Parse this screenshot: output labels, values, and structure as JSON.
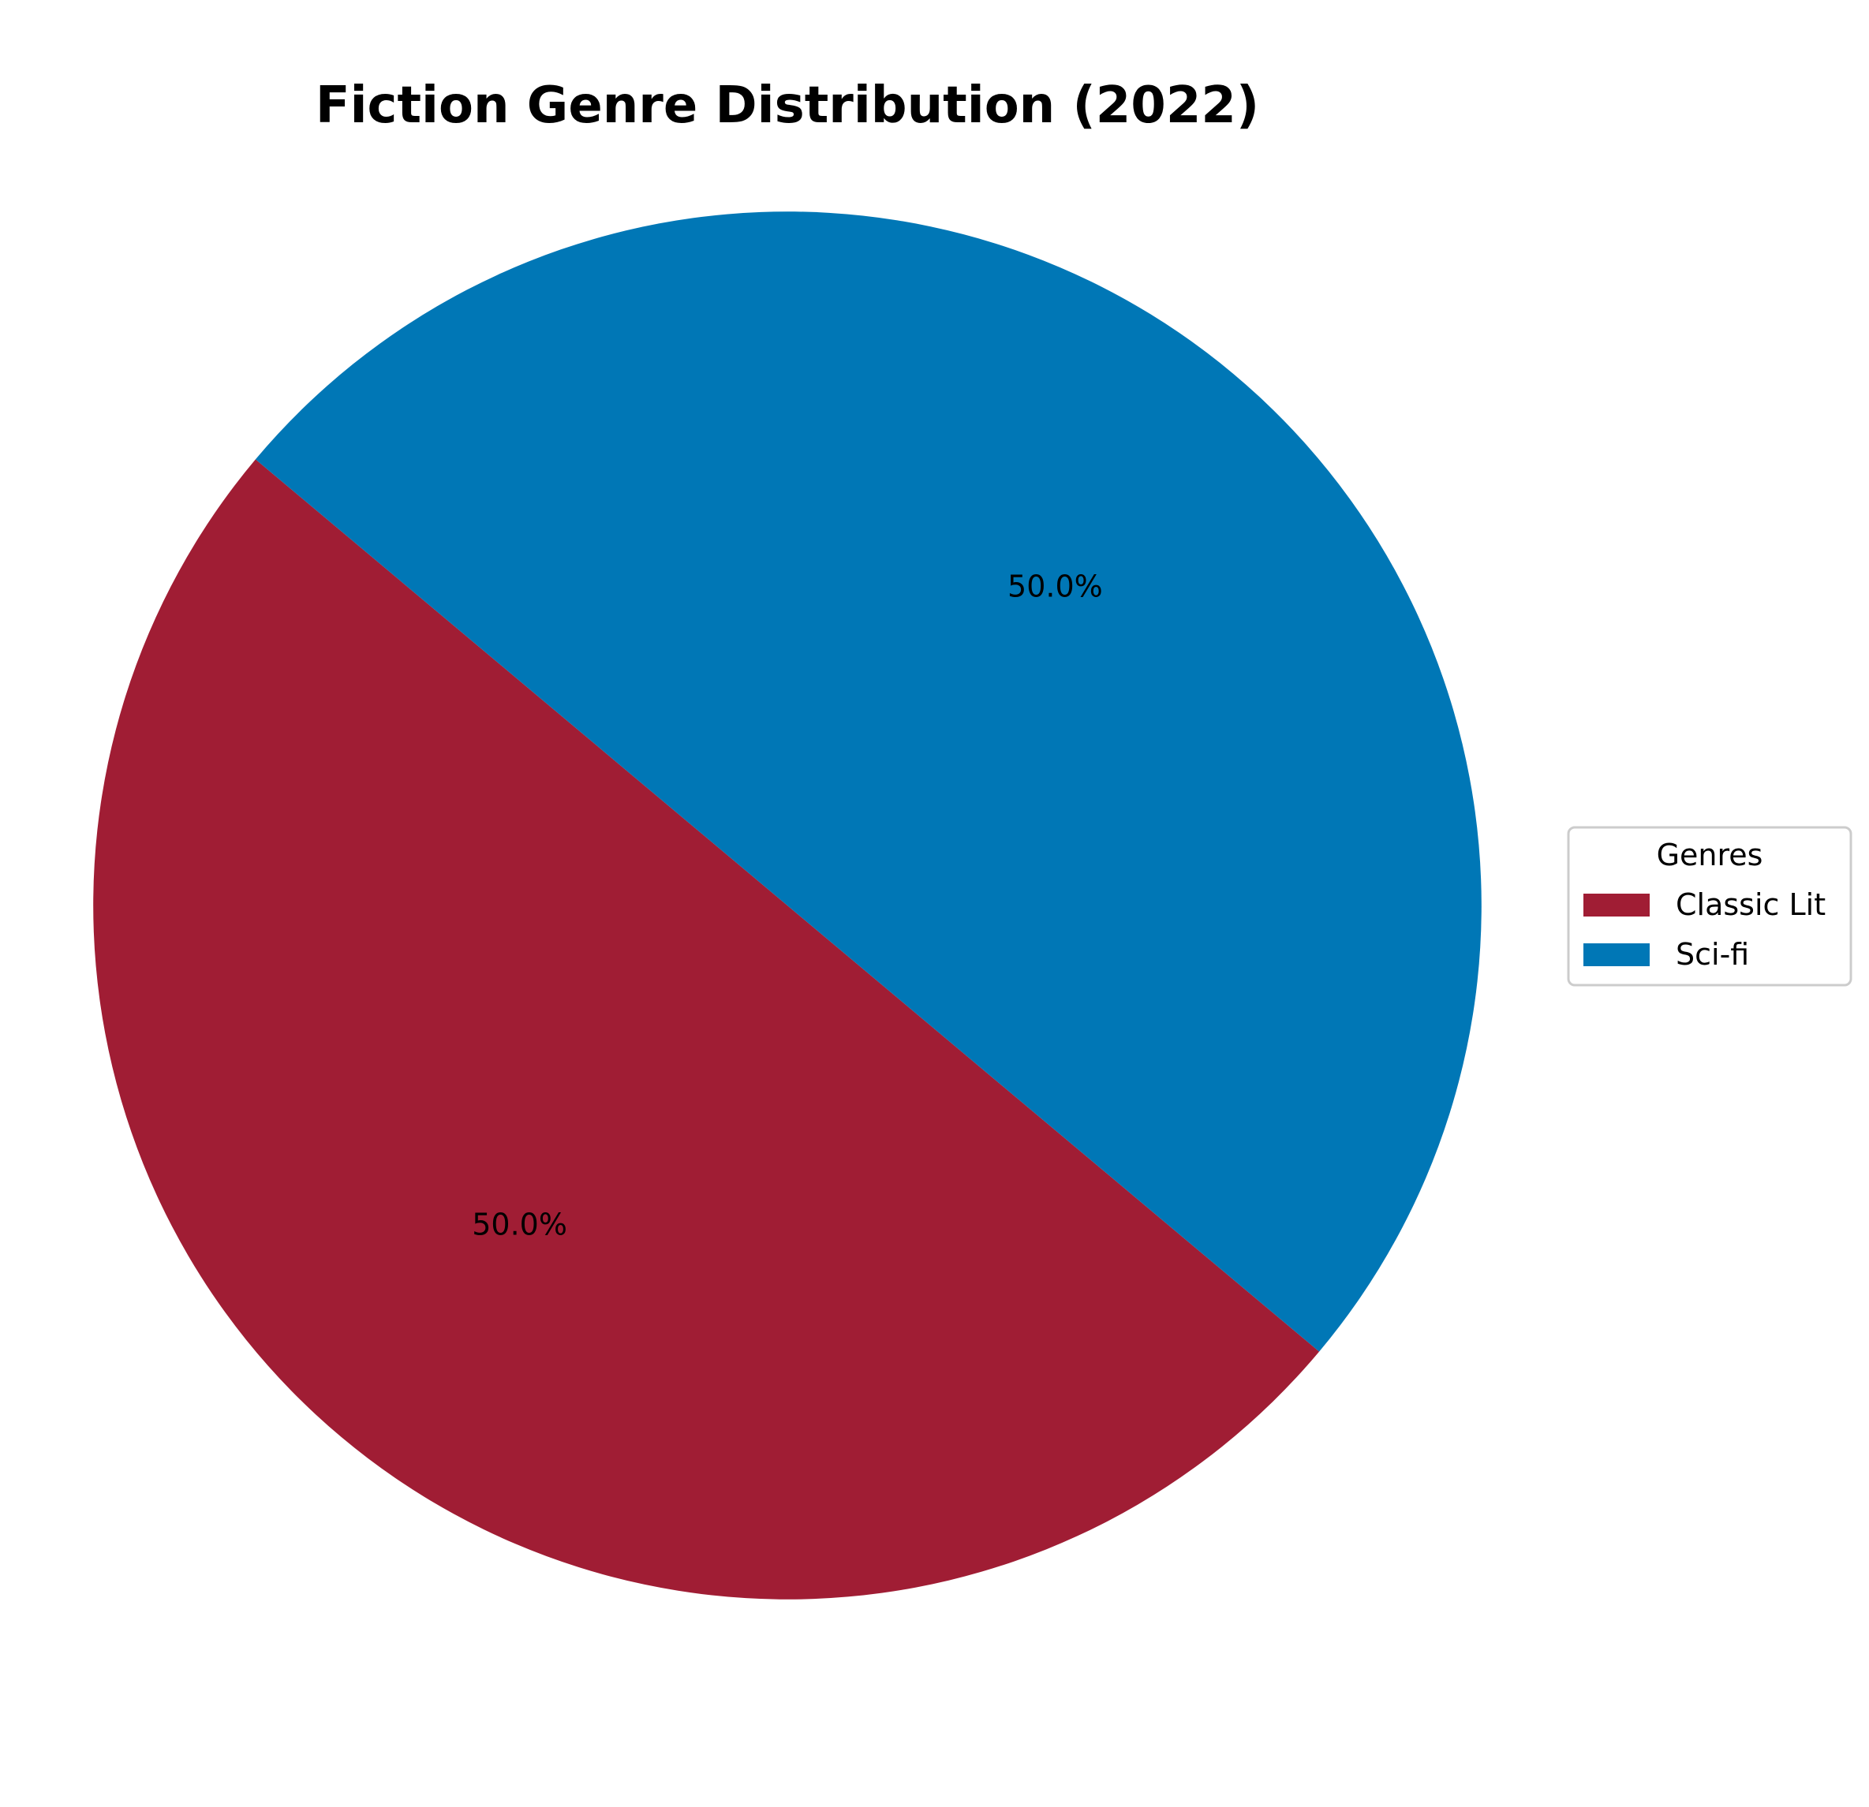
{
  "chart_data": {
    "type": "pie",
    "title": "Fiction Genre Distribution (2022)",
    "categories": [
      "Classic Lit",
      "Sci-fi"
    ],
    "values": [
      50.0,
      50.0
    ],
    "labels": [
      "50.0%",
      "50.0%"
    ],
    "colors": [
      "#A01D34",
      "#0077B6"
    ],
    "legend": {
      "title": "Genres",
      "placement": "center-right"
    }
  }
}
